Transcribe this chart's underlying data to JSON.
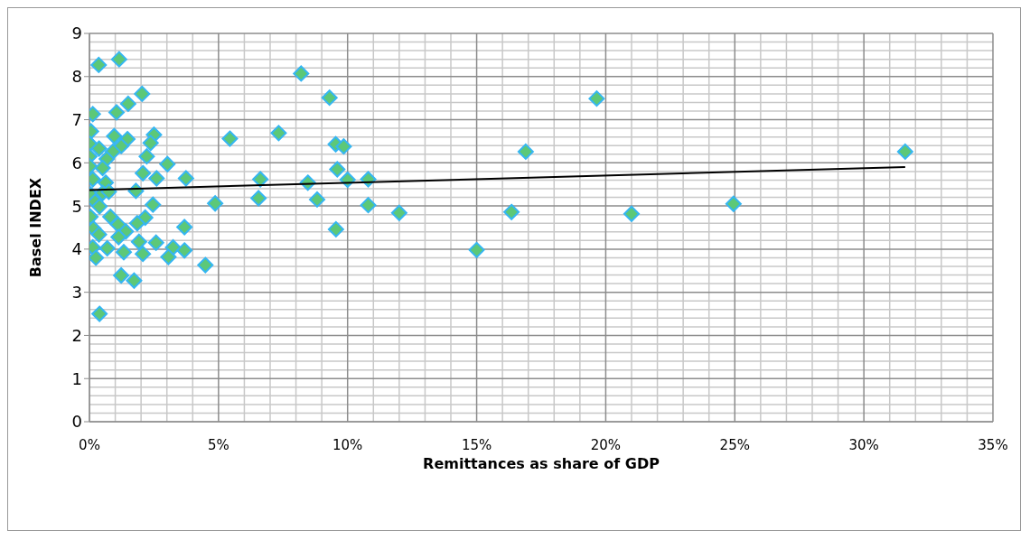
{
  "chart_data": {
    "type": "scatter",
    "xlabel": "Remittances as share of GDP",
    "ylabel": "Basel INDEX",
    "xlim": [
      0,
      35
    ],
    "xticks": [
      {
        "value": 0,
        "label": "0%"
      },
      {
        "value": 5,
        "label": "5%"
      },
      {
        "value": 10,
        "label": "10%"
      },
      {
        "value": 15,
        "label": "15%"
      },
      {
        "value": 20,
        "label": "20%"
      },
      {
        "value": 25,
        "label": "25%"
      },
      {
        "value": 30,
        "label": "30%"
      },
      {
        "value": 35,
        "label": "35%"
      }
    ],
    "ylim": [
      0,
      9
    ],
    "yticks": [
      0,
      1,
      2,
      3,
      4,
      5,
      6,
      7,
      8,
      9
    ],
    "grid": true,
    "marker": "diamond",
    "series": [
      {
        "color": "#5cc878",
        "x": [
          0.36,
          1.15,
          2.04,
          1.5,
          1.05,
          0.13,
          0.06,
          0.96,
          1.47,
          2.5,
          2.37,
          5.44,
          0.01,
          0.37,
          1.23,
          0.91,
          0,
          0.67,
          2.22,
          3.02,
          0.01,
          0.51,
          2.07,
          2.6,
          3.74,
          0.13,
          0.63,
          1.8,
          0.04,
          0.51,
          0.75,
          2.46,
          4.87,
          0.22,
          0.39,
          0.04,
          0.81,
          2.16,
          1.85,
          1.11,
          3.68,
          0.15,
          0.37,
          1.41,
          1.13,
          1.92,
          2.58,
          0.13,
          0.69,
          1.33,
          2.07,
          3.24,
          3.68,
          3.06,
          0.25,
          4.49,
          1.23,
          1.73,
          0.39,
          8.2,
          9.3,
          7.33,
          9.54,
          9.85,
          9.6,
          6.62,
          8.46,
          10,
          10.8,
          6.55,
          8.82,
          10.8,
          12.0,
          9.55,
          15.0,
          16.35,
          16.9,
          19.65,
          21.0,
          24.95,
          31.6
        ],
        "values": [
          8.27,
          8.4,
          7.6,
          7.37,
          7.17,
          7.13,
          6.73,
          6.62,
          6.55,
          6.65,
          6.46,
          6.56,
          6.44,
          6.33,
          6.39,
          6.26,
          6.15,
          6.09,
          6.15,
          5.97,
          5.92,
          5.88,
          5.76,
          5.64,
          5.64,
          5.62,
          5.54,
          5.35,
          5.27,
          5.3,
          5.33,
          5.03,
          5.06,
          5.1,
          4.99,
          4.75,
          4.75,
          4.73,
          4.6,
          4.57,
          4.51,
          4.48,
          4.34,
          4.41,
          4.28,
          4.17,
          4.15,
          4.04,
          4.02,
          3.93,
          3.89,
          4.04,
          3.97,
          3.82,
          3.8,
          3.63,
          3.39,
          3.27,
          2.5,
          8.07,
          7.51,
          6.69,
          6.43,
          6.38,
          5.85,
          5.62,
          5.54,
          5.61,
          5.62,
          5.18,
          5.15,
          5.02,
          4.84,
          4.46,
          3.98,
          4.86,
          6.26,
          7.49,
          4.82,
          5.05,
          6.26
        ]
      },
      {
        "type": "line",
        "color": "#000000",
        "marker": "none",
        "x": [
          0,
          31.6
        ],
        "values": [
          5.37,
          5.9
        ]
      }
    ]
  }
}
